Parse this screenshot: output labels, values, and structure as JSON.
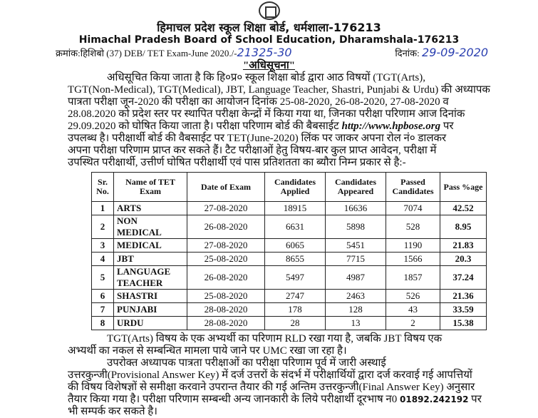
{
  "header": {
    "title_hi": "हिमाचल प्रदेश स्कूल शिक्षा बोर्ड, धर्मशाला-176213",
    "title_en": "Himachal Pradesh Board of School Education, Dharamshala-176213",
    "ref_label": "क्रमांक:हिशिबो (37) DEB/ TET Exam-June 2020./-",
    "ref_number": "21325-30",
    "date_label": "दिनांक:",
    "date_value": "29-09-2020",
    "notice": "\"अधिसूचना\""
  },
  "intro_lines": [
    "अधिसूचित किया जाता है कि हि०प्र० स्कूल शिक्षा बोर्ड द्वारा आठ विषयों (TGT(Arts),",
    "TGT(Non-Medical), TGT(Medical), JBT, Language Teacher, Shastri, Punjabi & Urdu) की अध्यापक",
    "पात्रता परीक्षा जून-2020 की परीक्षा का आयोजन दिनांक 25-08-2020, 26-08-2020, 27-08-2020 व",
    "28.08.2020 को प्रदेश स्तर पर स्थापित परीक्षा केन्द्रों में किया गया था, जिनका परीक्षा परिणाम आज दिनांक",
    "29.09.2020 को घोषित किया जाता है। परीक्षा परिणाम बोर्ड की बैबसाईट",
    "http://www.hpbose.org",
    "पर",
    "उपलब्ध है। परीक्षार्थी बोर्ड की वैबसाईट पर TET(June-2020) लिंक पर जाकर अपना रोल नं० डालकर",
    "अपना परीक्षा परिणाम प्राप्त कर सकते हैं। टैट परीक्षाओं हेतु विषय-बार कुल प्राप्त आवेदन, परीक्षा में",
    "उपस्थित परीक्षार्थी, उत्तीर्ण घोषित परीक्षार्थी एवं पास प्रतिशतता का ब्यौरा निम्न प्रकार से है:-"
  ],
  "table": {
    "headers": [
      "Sr. No.",
      "Name of TET Exam",
      "Date of Exam",
      "Candidates Applied",
      "Candidates Appeared",
      "Passed Candidates",
      "Pass %age"
    ],
    "rows": [
      [
        "1",
        "ARTS",
        "27-08-2020",
        "18915",
        "16636",
        "7074",
        "42.52"
      ],
      [
        "2",
        "NON MEDICAL",
        "26-08-2020",
        "6631",
        "5898",
        "528",
        "8.95"
      ],
      [
        "3",
        "MEDICAL",
        "27-08-2020",
        "6065",
        "5451",
        "1190",
        "21.83"
      ],
      [
        "4",
        "JBT",
        "25-08-2020",
        "8655",
        "7715",
        "1566",
        "20.3"
      ],
      [
        "5",
        "LANGUAGE TEACHER",
        "26-08-2020",
        "5497",
        "4987",
        "1857",
        "37.24"
      ],
      [
        "6",
        "SHASTRI",
        "25-08-2020",
        "2747",
        "2463",
        "526",
        "21.36"
      ],
      [
        "7",
        "PUNJABI",
        "28-08-2020",
        "178",
        "128",
        "43",
        "33.59"
      ],
      [
        "8",
        "URDU",
        "28-08-2020",
        "28",
        "13",
        "2",
        "15.38"
      ]
    ]
  },
  "footer_lines": [
    "TGT(Arts) विषय के एक अभ्यर्थी का परिणाम RLD रखा गया है, जबकि JBT विषय एक",
    "अभ्यर्थी का नकल से सम्बन्धित मामला पाये जाने पर UMC रखा जा रहा है।",
    "उपरोक्त अध्यापक पात्रता परीक्षाओं का परीक्षा परिणाम पूर्व में जारी अस्थाई",
    "उत्तरकुन्जी(Provisional Answer Key) में दर्ज उत्तरों के संदर्भ में परीक्षार्थियों द्वारा दर्ज करवाई गई आपत्तियों",
    "की विषय विशेषज्ञों से समीक्षा करवाने उपरान्त तैयार की गई अन्तिम उत्तरकुन्जी(Final Answer Key) अनुसार",
    "तैयार किया गया है। परीक्षा परिणाम सम्बन्धी अन्य जानकारी के लिये परीक्षार्थी दूरभाष न0",
    "01892.242192",
    "पर",
    "भी सम्पर्क कर सकते है।"
  ]
}
